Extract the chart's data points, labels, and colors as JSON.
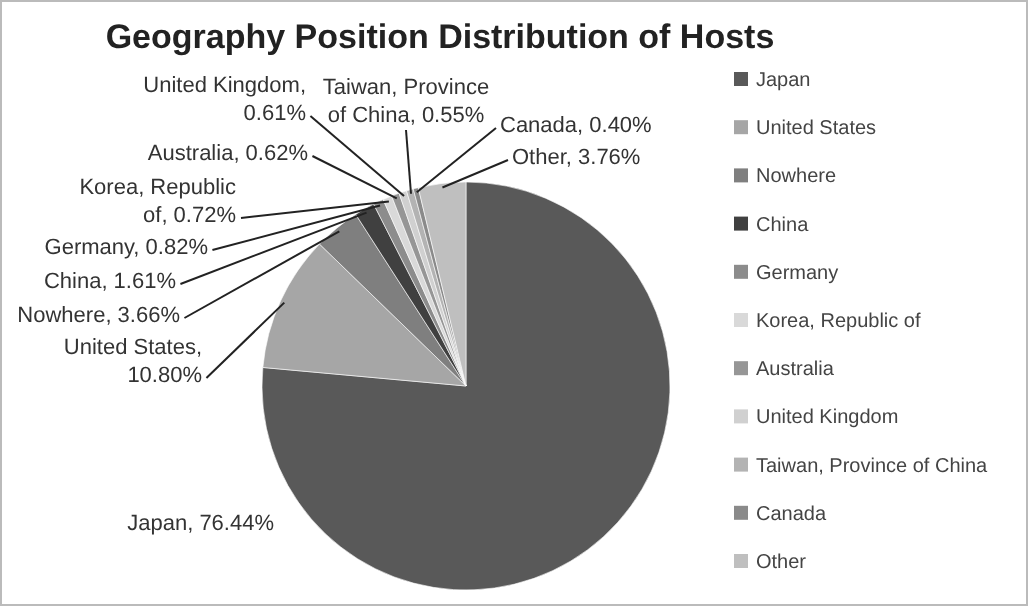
{
  "chart_data": {
    "type": "pie",
    "title": "Geography Position Distribution of Hosts",
    "categories": [
      "Japan",
      "United States",
      "Nowhere",
      "China",
      "Germany",
      "Korea, Republic of",
      "Australia",
      "United Kingdom",
      "Taiwan, Province of China",
      "Canada",
      "Other"
    ],
    "values": [
      76.44,
      10.8,
      3.66,
      1.61,
      0.82,
      0.72,
      0.62,
      0.61,
      0.55,
      0.4,
      3.76
    ],
    "value_labels": [
      "Japan, 76.44%",
      "United States, 10.80%",
      "Nowhere, 3.66%",
      "China, 1.61%",
      "Germany, 0.82%",
      "Korea, Republic of, 0.72%",
      "Australia, 0.62%",
      "United Kingdom, 0.61%",
      "Taiwan, Province of China, 0.55%",
      "Canada, 0.40%",
      "Other, 3.76%"
    ],
    "colors": [
      "#595959",
      "#a6a6a6",
      "#7f7f7f",
      "#404040",
      "#8c8c8c",
      "#d9d9d9",
      "#969696",
      "#d0d0d0",
      "#b3b3b3",
      "#8a8a8a",
      "#bfbfbf"
    ],
    "legend": "right"
  }
}
